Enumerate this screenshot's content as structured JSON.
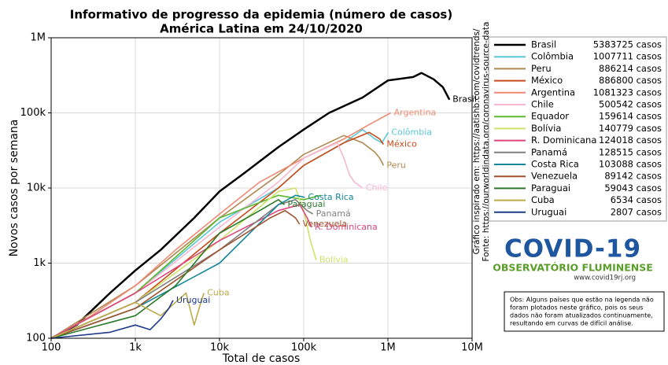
{
  "chart_data": {
    "type": "line",
    "title": "Informativo de progresso da epidemia (número de casos)",
    "subtitle": "América Latina em 24/10/2020",
    "x_label": "Total de casos",
    "y_label": "Novos casos por semana",
    "x_scale": "log",
    "y_scale": "log",
    "grid": true,
    "xlim": [
      100,
      10000000
    ],
    "xticks": [
      100,
      {
        "value": 1000,
        "label": "1k"
      },
      {
        "value": 10000,
        "label": "10k"
      },
      {
        "value": 100000,
        "label": "100k"
      },
      {
        "value": 1000000,
        "label": "1M"
      },
      {
        "value": 10000000,
        "label": "10M"
      }
    ],
    "ylim": [
      100,
      1000000
    ],
    "yticks": [
      100,
      {
        "value": 1000,
        "label": "1k"
      },
      {
        "value": 10000,
        "label": "10k"
      },
      {
        "value": 100000,
        "label": "100k"
      },
      {
        "value": 1000000,
        "label": "1M"
      }
    ],
    "series": [
      {
        "name": "Brasil",
        "total": "5383725 casos",
        "color": "#000000",
        "width": 2.5,
        "x": [
          100,
          200,
          500,
          1000,
          2000,
          5000,
          10000,
          20000,
          50000,
          100000,
          200000,
          500000,
          1000000,
          2000000,
          2500000,
          3500000,
          4500000,
          5383725
        ],
        "values": [
          100,
          150,
          400,
          800,
          1500,
          4000,
          9000,
          16000,
          35000,
          60000,
          100000,
          160000,
          270000,
          300000,
          340000,
          280000,
          220000,
          150000
        ]
      },
      {
        "name": "Colômbia",
        "total": "1007711 casos",
        "color": "#5bc8d8",
        "x": [
          100,
          1000,
          10000,
          50000,
          100000,
          300000,
          500000,
          700000,
          850000,
          1007711
        ],
        "values": [
          100,
          400,
          3500,
          10000,
          20000,
          40000,
          60000,
          45000,
          40000,
          55000
        ]
      },
      {
        "name": "Peru",
        "total": "886214 casos",
        "color": "#b0884f",
        "x": [
          100,
          1000,
          10000,
          50000,
          100000,
          300000,
          500000,
          700000,
          800000,
          886214
        ],
        "values": [
          100,
          500,
          4000,
          15000,
          28000,
          50000,
          40000,
          30000,
          25000,
          20000
        ]
      },
      {
        "name": "México",
        "total": "886800 casos",
        "color": "#c84b1a",
        "x": [
          100,
          1000,
          10000,
          50000,
          100000,
          300000,
          600000,
          800000,
          886800
        ],
        "values": [
          100,
          300,
          2500,
          10000,
          20000,
          40000,
          55000,
          45000,
          38000
        ]
      },
      {
        "name": "Argentina",
        "total": "1081323 casos",
        "color": "#f08a74",
        "x": [
          100,
          300,
          1000,
          3000,
          10000,
          30000,
          100000,
          300000,
          600000,
          1081323
        ],
        "values": [
          100,
          200,
          500,
          1500,
          4500,
          12000,
          25000,
          45000,
          70000,
          100000
        ]
      },
      {
        "name": "Chile",
        "total": "500542 casos",
        "color": "#f7b6d2",
        "x": [
          100,
          1000,
          10000,
          50000,
          100000,
          250000,
          300000,
          350000,
          400000,
          500542
        ],
        "values": [
          100,
          400,
          3000,
          12000,
          25000,
          40000,
          25000,
          15000,
          12000,
          10000
        ]
      },
      {
        "name": "Equador",
        "total": "159614 casos",
        "color": "#5cb82e",
        "end_label": false,
        "x": [
          100,
          1000,
          10000,
          50000,
          100000,
          159614
        ],
        "values": [
          100,
          400,
          4000,
          8000,
          7000,
          8000
        ]
      },
      {
        "name": "Bolívia",
        "total": "140779 casos",
        "color": "#cde36a",
        "x": [
          100,
          1000,
          10000,
          50000,
          80000,
          100000,
          120000,
          140779
        ],
        "values": [
          100,
          300,
          2000,
          9000,
          10000,
          5000,
          2000,
          1100
        ]
      },
      {
        "name": "R. Dominicana",
        "total": "124018 casos",
        "color": "#e0457b",
        "x": [
          100,
          1000,
          10000,
          50000,
          90000,
          110000,
          124018
        ],
        "values": [
          100,
          400,
          2000,
          5000,
          6000,
          4000,
          3000
        ]
      },
      {
        "name": "Panamá",
        "total": "128515 casos",
        "color": "#7f7f7f",
        "x": [
          100,
          1000,
          10000,
          50000,
          80000,
          110000,
          128515
        ],
        "values": [
          100,
          300,
          1500,
          6000,
          7000,
          5000,
          4500
        ]
      },
      {
        "name": "Costa Rica",
        "total": "103088 casos",
        "color": "#17879a",
        "x": [
          100,
          1000,
          10000,
          50000,
          80000,
          103088
        ],
        "values": [
          100,
          250,
          1000,
          6000,
          8000,
          7500
        ]
      },
      {
        "name": "Venezuela",
        "total": "89142 casos",
        "color": "#a0522d",
        "x": [
          100,
          1000,
          10000,
          40000,
          60000,
          80000,
          89142
        ],
        "values": [
          100,
          250,
          1500,
          4000,
          5000,
          4000,
          3300
        ]
      },
      {
        "name": "Paraguai",
        "total": "59043 casos",
        "color": "#2d7a2d",
        "x": [
          100,
          1000,
          3000,
          10000,
          30000,
          50000,
          59043
        ],
        "values": [
          100,
          200,
          500,
          2500,
          5000,
          7000,
          6000
        ]
      },
      {
        "name": "Cuba",
        "total": "6534 casos",
        "color": "#bcab4a",
        "x": [
          100,
          1000,
          2000,
          4000,
          5000,
          6000,
          6534
        ],
        "values": [
          100,
          300,
          200,
          400,
          150,
          300,
          400
        ]
      },
      {
        "name": "Uruguai",
        "total": "2807 casos",
        "color": "#1f3a8a",
        "x": [
          100,
          500,
          1000,
          1500,
          2000,
          2500,
          2807
        ],
        "values": [
          100,
          120,
          150,
          130,
          180,
          250,
          320
        ]
      }
    ]
  },
  "credits": {
    "inspired": "Gráfico inspirado em: https://aatishb.com/covidtrends/",
    "source": "Fonte: https://ourworldindata.org/coronavirus-source-data"
  },
  "logo": {
    "title": "COVID-19",
    "subtitle": "OBSERVATÓRIO FLUMINENSE",
    "url": "www.covid19rj.org"
  },
  "note": [
    "Obs: Alguns países que estão na legenda não",
    "foram plotados neste gráfico, pois os seus",
    "dados não foram atualizados continuamente,",
    "resultando em curvas de difícil análise."
  ]
}
